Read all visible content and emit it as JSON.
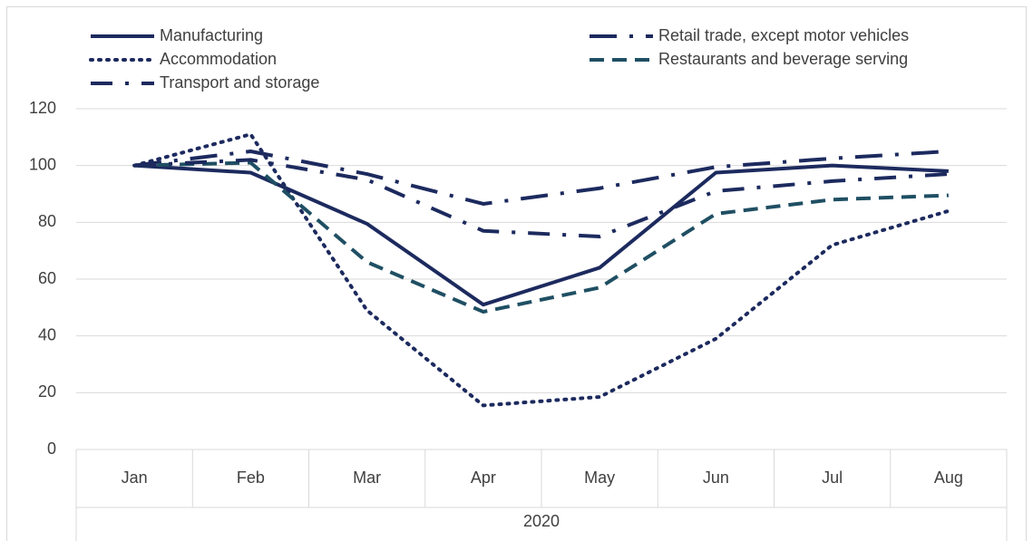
{
  "chart_data": {
    "type": "line",
    "categories": [
      "Jan",
      "Feb",
      "Mar",
      "Apr",
      "May",
      "Jun",
      "Jul",
      "Aug"
    ],
    "x_group_label": "2020",
    "series": [
      {
        "name": "Manufacturing",
        "color": "#1c2a5e",
        "dash": "solid",
        "values": [
          100,
          97.5,
          79.5,
          51,
          64,
          97.5,
          100,
          98
        ]
      },
      {
        "name": "Retail trade, except motor vehicles",
        "color": "#1c2a5e",
        "dash": "long-dash-dot",
        "values": [
          100,
          105,
          97,
          86.5,
          92,
          99.5,
          102.5,
          105
        ]
      },
      {
        "name": "Accommodation",
        "color": "#1c2a5e",
        "dash": "dot",
        "values": [
          100,
          111,
          49,
          15.5,
          18.5,
          39,
          72,
          84
        ]
      },
      {
        "name": "Restaurants and beverage serving",
        "color": "#1f4f63",
        "dash": "dash",
        "values": [
          100,
          101,
          66,
          48.5,
          57,
          83,
          88,
          89.5
        ]
      },
      {
        "name": "Transport and storage",
        "color": "#1c2a5e",
        "dash": "dash-dot",
        "values": [
          100,
          102,
          95,
          77,
          75,
          91,
          94.5,
          97
        ]
      }
    ],
    "ylim": [
      0,
      120
    ],
    "yticks": [
      0,
      20,
      40,
      60,
      80,
      100,
      120
    ],
    "grid": true,
    "legend": "top"
  }
}
